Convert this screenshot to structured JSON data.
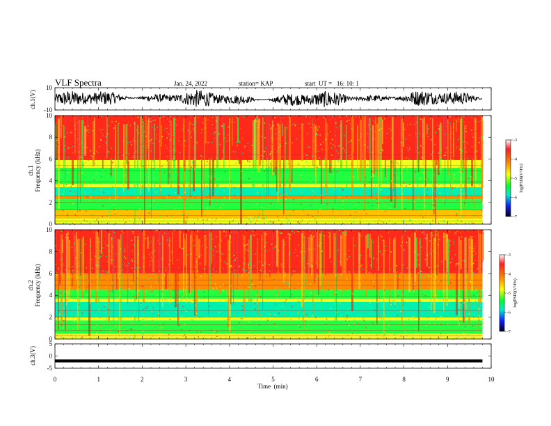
{
  "header": {
    "title": "VLF Spectra",
    "date": "Jan. 24, 2022",
    "station": "station= KAP",
    "start": "start  UT =   16: 10: 1"
  },
  "colorbar": {
    "ticks": [
      "-3",
      "-4",
      "-5",
      "-6",
      "-7"
    ],
    "label": "log(PSD)(V²/Hz)",
    "stops": [
      "#ffffff",
      "#ff2020",
      "#ff8a00",
      "#ffff00",
      "#00ff30",
      "#00e8d0",
      "#1020ff",
      "#000020"
    ]
  },
  "chart_data": [
    {
      "type": "line",
      "name": "ch1-waveform",
      "ylabel": "ch.1(V)",
      "ylim": [
        -10,
        10
      ],
      "yticks": [
        "10",
        "-10"
      ],
      "xlim": [
        0,
        9.8
      ],
      "description_values": {
        "mean": 0,
        "amplitude": 6
      }
    },
    {
      "type": "heatmap",
      "name": "ch1-spectrogram",
      "ylabel": "ch.1",
      "ylabel2": "Frequency  (kHz)",
      "ylim": [
        0,
        10
      ],
      "yticks": [
        "0",
        "2",
        "4",
        "6",
        "8",
        "10"
      ],
      "xlim": [
        0,
        9.8
      ],
      "bands": [
        {
          "from": 0,
          "to": 0.5,
          "level": "yellow"
        },
        {
          "from": 0.5,
          "to": 1.3,
          "level": "orange-yellow"
        },
        {
          "from": 1.3,
          "to": 2.3,
          "level": "green"
        },
        {
          "from": 2.3,
          "to": 2.6,
          "level": "orange"
        },
        {
          "from": 2.6,
          "to": 3.4,
          "level": "cyan"
        },
        {
          "from": 3.4,
          "to": 3.7,
          "level": "yellow"
        },
        {
          "from": 3.7,
          "to": 5.2,
          "level": "green"
        },
        {
          "from": 5.2,
          "to": 5.9,
          "level": "yellow"
        },
        {
          "from": 5.9,
          "to": 10,
          "level": "red"
        }
      ]
    },
    {
      "type": "heatmap",
      "name": "ch2-spectrogram",
      "ylabel": "ch.2",
      "ylabel2": "Frequency  (kHz)",
      "ylim": [
        0,
        10
      ],
      "yticks": [
        "0",
        "2",
        "4",
        "6",
        "8",
        "10"
      ],
      "xlim": [
        0,
        9.8
      ],
      "bands": [
        {
          "from": 0,
          "to": 0.5,
          "level": "yellow"
        },
        {
          "from": 0.5,
          "to": 1.7,
          "level": "green"
        },
        {
          "from": 1.7,
          "to": 2.0,
          "level": "yellow"
        },
        {
          "from": 2.0,
          "to": 3.4,
          "level": "cyan"
        },
        {
          "from": 3.4,
          "to": 3.7,
          "level": "yellow"
        },
        {
          "from": 3.7,
          "to": 4.5,
          "level": "green"
        },
        {
          "from": 4.5,
          "to": 6.0,
          "level": "orange"
        },
        {
          "from": 6.0,
          "to": 10,
          "level": "red"
        }
      ]
    },
    {
      "type": "line",
      "name": "ch3-waveform",
      "ylabel": "ch.3(V)",
      "ylim": [
        -5,
        5
      ],
      "yticks": [
        "5",
        "0",
        "-5"
      ],
      "xlim": [
        0,
        9.8
      ],
      "description_values": {
        "mean": -2,
        "amplitude": 0.3
      }
    }
  ],
  "xaxis": {
    "label": "Time  (min)",
    "ticks": [
      "0",
      "1",
      "2",
      "3",
      "4",
      "5",
      "6",
      "7",
      "8",
      "9",
      "10"
    ],
    "range": [
      0,
      10
    ]
  }
}
